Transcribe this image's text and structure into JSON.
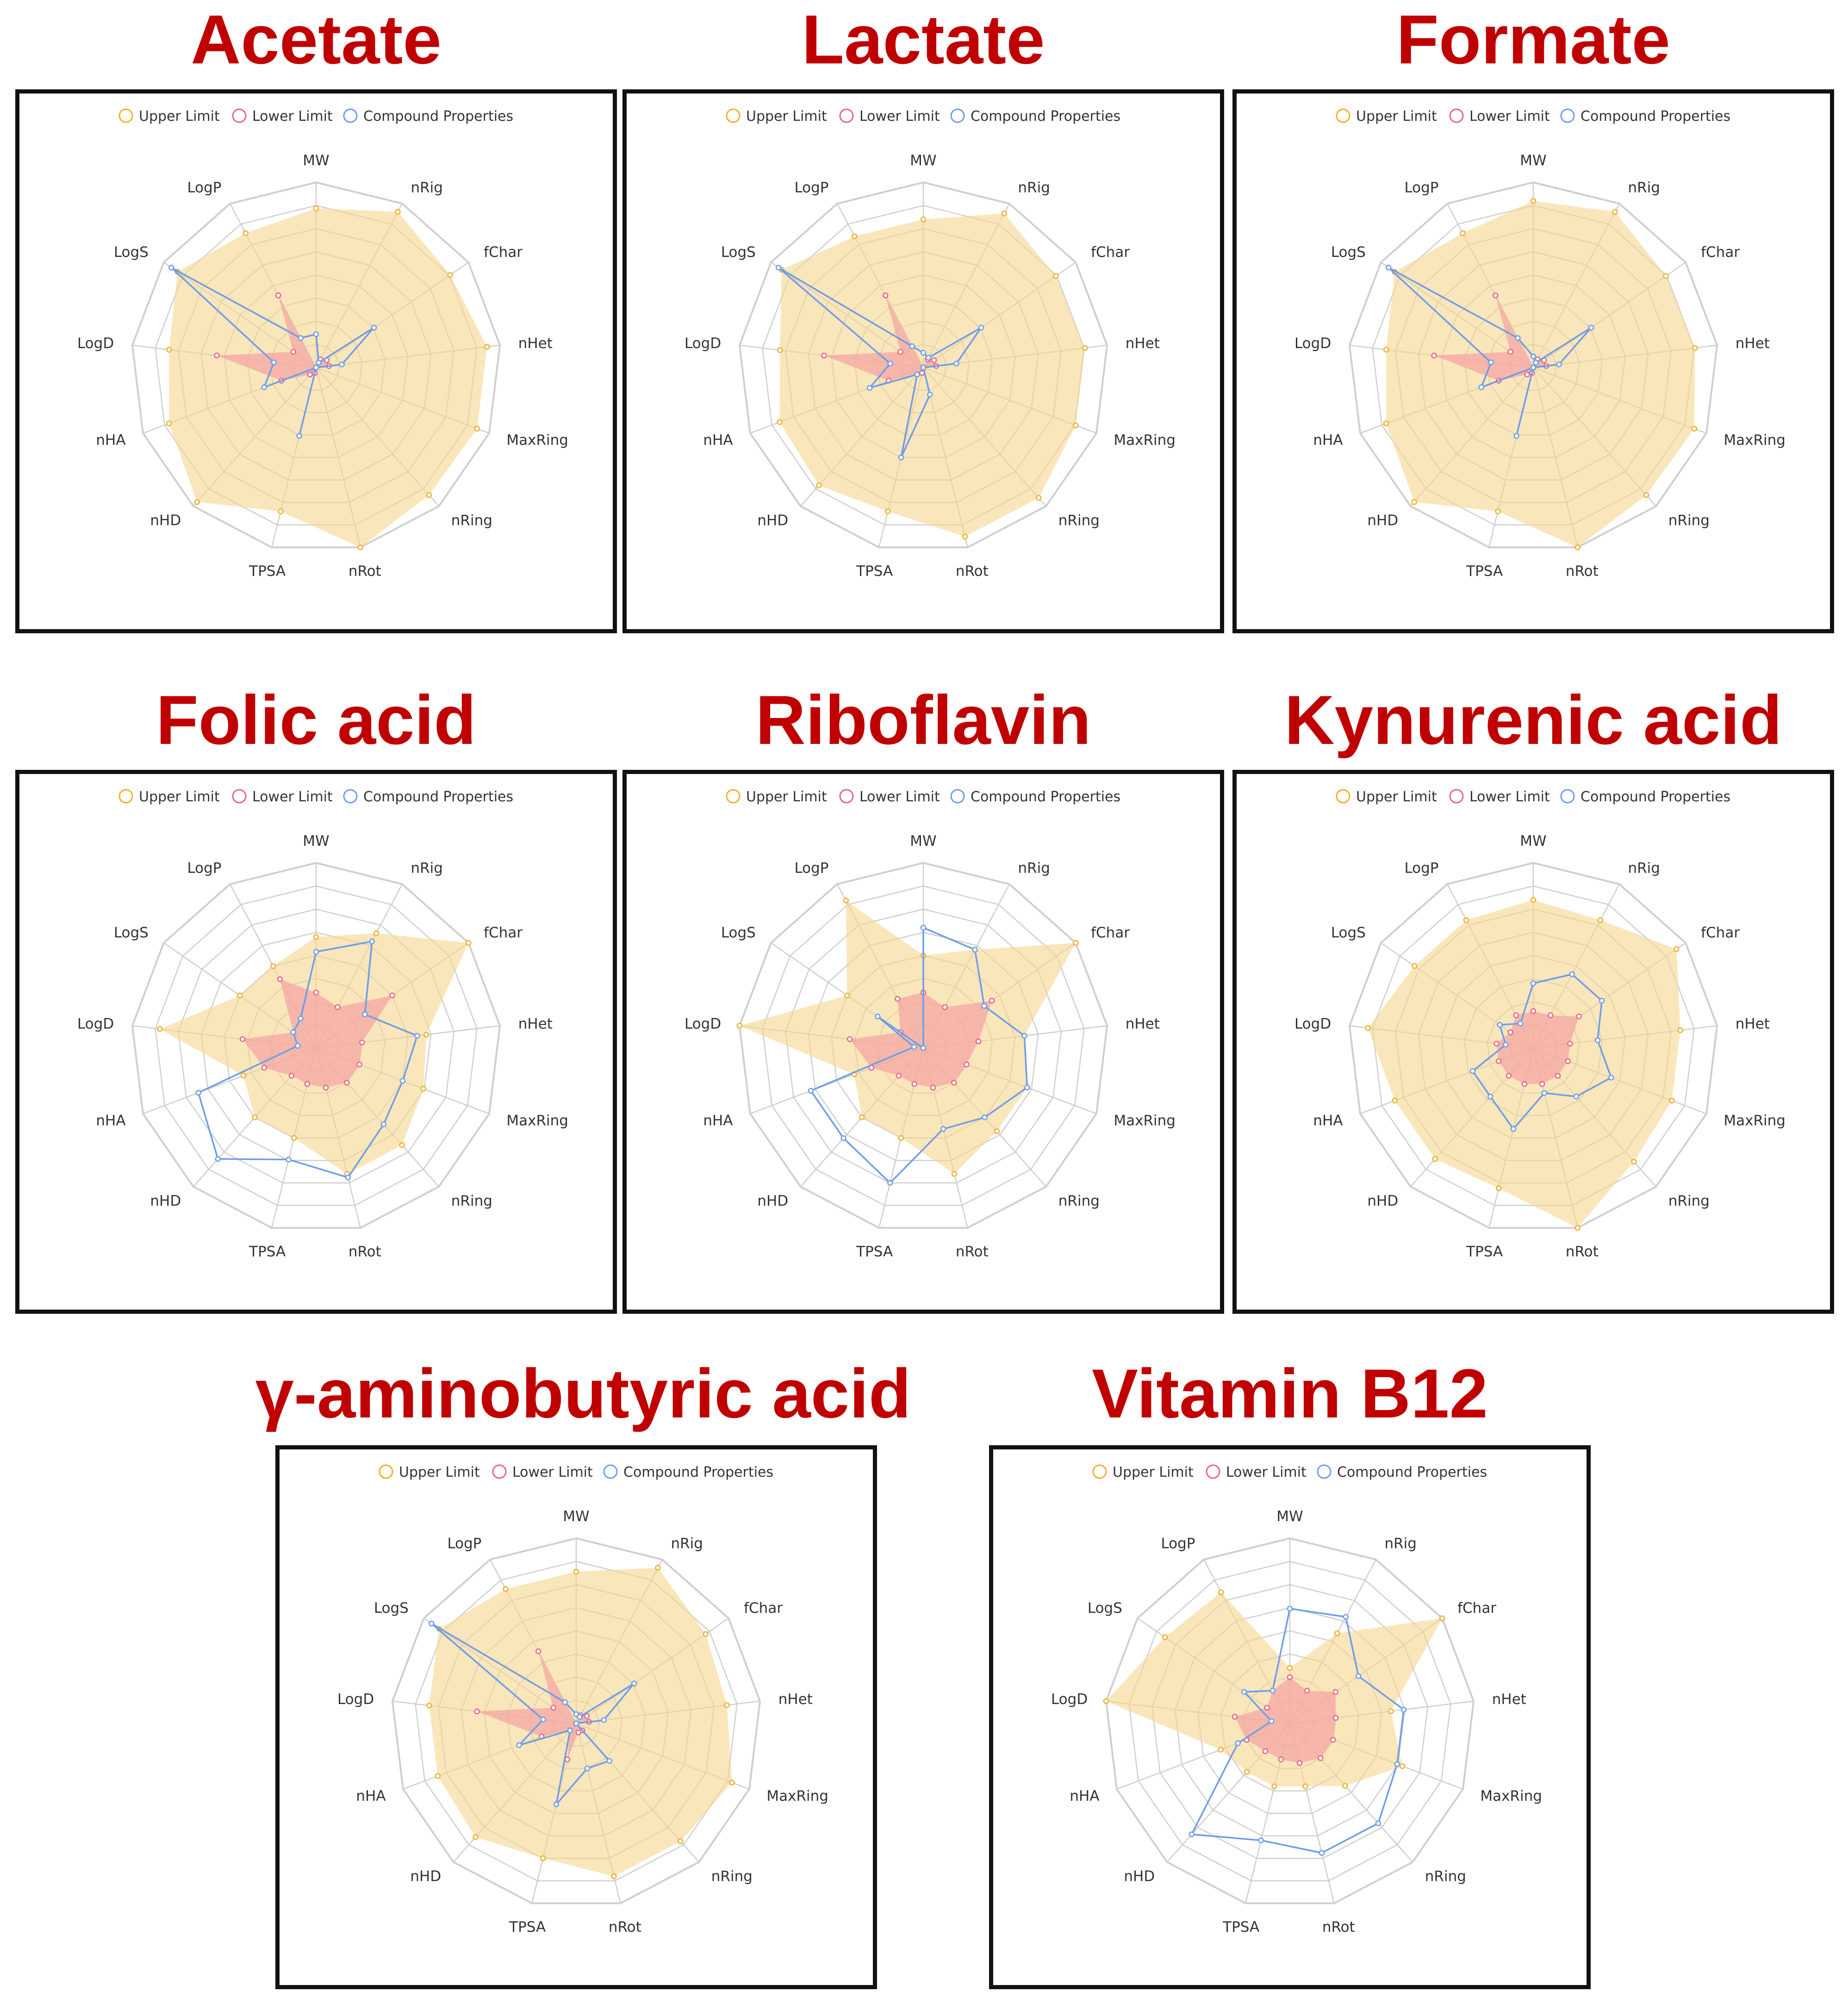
{
  "legend": {
    "upper": "Upper Limit",
    "lower": "Lower Limit",
    "compound": "Compound Properties"
  },
  "colors": {
    "title": "#c00000",
    "upper_fill": "#f6d58e",
    "upper_stroke": "#f0b02c",
    "lower_fill": "#f4a3a3",
    "lower_stroke": "#e8648a",
    "compound_stroke": "#6d9de8",
    "grid": "#cfcfcf"
  },
  "chart_data": [
    {
      "type": "radar",
      "title": "Acetate",
      "axes": [
        "MW",
        "nRig",
        "fChar",
        "nHet",
        "MaxRing",
        "nRing",
        "nRot",
        "TPSA",
        "nHD",
        "nHA",
        "LogD",
        "LogS",
        "LogP"
      ],
      "series": [
        {
          "name": "Upper Limit",
          "values": [
            0.86,
            0.95,
            0.88,
            0.93,
            0.93,
            0.92,
            1.0,
            0.8,
            0.97,
            0.85,
            0.8,
            0.91,
            0.82
          ]
        },
        {
          "name": "Lower Limit",
          "values": [
            0.0,
            0.05,
            0.07,
            0.07,
            0.0,
            0.0,
            0.0,
            0.03,
            0.05,
            0.2,
            0.54,
            0.15,
            0.44
          ]
        },
        {
          "name": "Compound Properties",
          "values": [
            0.18,
            0.03,
            0.38,
            0.14,
            0.0,
            0.0,
            0.0,
            0.38,
            0.0,
            0.3,
            0.23,
            0.95,
            0.18
          ]
        }
      ]
    },
    {
      "type": "radar",
      "title": "Lactate",
      "axes": [
        "MW",
        "nRig",
        "fChar",
        "nHet",
        "MaxRing",
        "nRing",
        "nRot",
        "TPSA",
        "nHD",
        "nHA",
        "LogD",
        "LogS",
        "LogP"
      ],
      "series": [
        {
          "name": "Upper Limit",
          "values": [
            0.8,
            0.94,
            0.87,
            0.88,
            0.88,
            0.94,
            0.94,
            0.8,
            0.85,
            0.83,
            0.78,
            0.93,
            0.8
          ]
        },
        {
          "name": "Lower Limit",
          "values": [
            0.0,
            0.05,
            0.07,
            0.07,
            0.0,
            0.0,
            0.0,
            0.03,
            0.05,
            0.2,
            0.54,
            0.15,
            0.44
          ]
        },
        {
          "name": "Compound Properties",
          "values": [
            0.08,
            0.06,
            0.38,
            0.18,
            0.0,
            0.0,
            0.15,
            0.5,
            0.05,
            0.31,
            0.18,
            0.95,
            0.13
          ]
        }
      ]
    },
    {
      "type": "radar",
      "title": "Formate",
      "axes": [
        "MW",
        "nRig",
        "fChar",
        "nHet",
        "MaxRing",
        "nRing",
        "nRot",
        "TPSA",
        "nHD",
        "nHA",
        "LogD",
        "LogS",
        "LogP"
      ],
      "series": [
        {
          "name": "Upper Limit",
          "values": [
            0.9,
            0.95,
            0.87,
            0.88,
            0.93,
            0.92,
            1.0,
            0.8,
            0.97,
            0.85,
            0.8,
            0.91,
            0.82
          ]
        },
        {
          "name": "Lower Limit",
          "values": [
            0.0,
            0.05,
            0.07,
            0.07,
            0.0,
            0.0,
            0.0,
            0.03,
            0.05,
            0.2,
            0.54,
            0.15,
            0.44
          ]
        },
        {
          "name": "Compound Properties",
          "values": [
            0.06,
            0.03,
            0.38,
            0.14,
            0.0,
            0.0,
            0.0,
            0.38,
            0.0,
            0.3,
            0.23,
            0.95,
            0.18
          ]
        }
      ]
    },
    {
      "type": "radar",
      "title": "Folic acid",
      "axes": [
        "MW",
        "nRig",
        "fChar",
        "nHet",
        "MaxRing",
        "nRing",
        "nRot",
        "TPSA",
        "nHD",
        "nHA",
        "LogD",
        "LogS",
        "LogP"
      ],
      "series": [
        {
          "name": "Upper Limit",
          "values": [
            0.6,
            0.7,
            1.0,
            0.6,
            0.62,
            0.7,
            0.7,
            0.5,
            0.5,
            0.42,
            0.85,
            0.5,
            0.5
          ]
        },
        {
          "name": "Lower Limit",
          "values": [
            0.3,
            0.25,
            0.5,
            0.25,
            0.25,
            0.25,
            0.22,
            0.2,
            0.2,
            0.3,
            0.4,
            0.15,
            0.42
          ]
        },
        {
          "name": "Compound Properties",
          "values": [
            0.52,
            0.65,
            0.32,
            0.55,
            0.5,
            0.55,
            0.72,
            0.62,
            0.8,
            0.68,
            0.1,
            0.15,
            0.18
          ]
        }
      ]
    },
    {
      "type": "radar",
      "title": "Riboflavin",
      "axes": [
        "MW",
        "nRig",
        "fChar",
        "nHet",
        "MaxRing",
        "nRing",
        "nRot",
        "TPSA",
        "nHD",
        "nHA",
        "LogD",
        "LogS",
        "LogP"
      ],
      "series": [
        {
          "name": "Upper Limit",
          "values": [
            0.5,
            0.6,
            1.0,
            0.55,
            0.6,
            0.6,
            0.7,
            0.5,
            0.5,
            0.4,
            1.0,
            0.5,
            0.9
          ]
        },
        {
          "name": "Lower Limit",
          "values": [
            0.3,
            0.25,
            0.45,
            0.3,
            0.25,
            0.25,
            0.22,
            0.2,
            0.2,
            0.3,
            0.4,
            0.15,
            0.3
          ]
        },
        {
          "name": "Compound Properties",
          "values": [
            0.65,
            0.6,
            0.4,
            0.55,
            0.6,
            0.5,
            0.45,
            0.75,
            0.65,
            0.65,
            0.05,
            0.3,
            0.0
          ]
        }
      ]
    },
    {
      "type": "radar",
      "title": "Kynurenic acid",
      "axes": [
        "MW",
        "nRig",
        "fChar",
        "nHet",
        "MaxRing",
        "nRing",
        "nRot",
        "TPSA",
        "nHD",
        "nHA",
        "LogD",
        "LogS",
        "LogP"
      ],
      "series": [
        {
          "name": "Upper Limit",
          "values": [
            0.8,
            0.78,
            0.94,
            0.8,
            0.8,
            0.82,
            1.0,
            0.78,
            0.8,
            0.8,
            0.9,
            0.78,
            0.78
          ]
        },
        {
          "name": "Lower Limit",
          "values": [
            0.2,
            0.2,
            0.3,
            0.2,
            0.2,
            0.2,
            0.2,
            0.2,
            0.2,
            0.2,
            0.2,
            0.15,
            0.2
          ]
        },
        {
          "name": "Compound Properties",
          "values": [
            0.35,
            0.45,
            0.45,
            0.35,
            0.45,
            0.35,
            0.25,
            0.45,
            0.35,
            0.35,
            0.15,
            0.22,
            0.15
          ]
        }
      ]
    },
    {
      "type": "radar",
      "title": "γ-aminobutyric acid",
      "axes": [
        "MW",
        "nRig",
        "fChar",
        "nHet",
        "MaxRing",
        "nRing",
        "nRot",
        "TPSA",
        "nHD",
        "nHA",
        "LogD",
        "LogS",
        "LogP"
      ],
      "series": [
        {
          "name": "Upper Limit",
          "values": [
            0.82,
            0.95,
            0.85,
            0.82,
            0.9,
            0.85,
            0.85,
            0.75,
            0.82,
            0.8,
            0.8,
            0.9,
            0.82
          ]
        },
        {
          "name": "Lower Limit",
          "values": [
            0.0,
            0.05,
            0.07,
            0.07,
            0.0,
            0.05,
            0.05,
            0.2,
            0.05,
            0.2,
            0.54,
            0.15,
            0.44
          ]
        },
        {
          "name": "Compound Properties",
          "values": [
            0.05,
            0.04,
            0.38,
            0.15,
            0.0,
            0.27,
            0.25,
            0.45,
            0.05,
            0.33,
            0.18,
            0.95,
            0.13
          ]
        }
      ]
    },
    {
      "type": "radar",
      "title": "Vitamin B12",
      "axes": [
        "MW",
        "nRig",
        "fChar",
        "nHet",
        "MaxRing",
        "nRing",
        "nRot",
        "TPSA",
        "nHD",
        "nHA",
        "LogD",
        "LogS",
        "LogP"
      ],
      "series": [
        {
          "name": "Upper Limit",
          "values": [
            0.3,
            0.55,
            1.0,
            0.55,
            0.65,
            0.45,
            0.35,
            0.35,
            0.35,
            0.4,
            1.0,
            0.82,
            0.8
          ]
        },
        {
          "name": "Lower Limit",
          "values": [
            0.25,
            0.2,
            0.3,
            0.25,
            0.25,
            0.25,
            0.22,
            0.2,
            0.2,
            0.25,
            0.3,
            0.15,
            0.2
          ]
        },
        {
          "name": "Compound Properties",
          "values": [
            0.62,
            0.65,
            0.45,
            0.62,
            0.62,
            0.72,
            0.72,
            0.65,
            0.8,
            0.3,
            0.1,
            0.3,
            0.2
          ]
        }
      ]
    }
  ]
}
